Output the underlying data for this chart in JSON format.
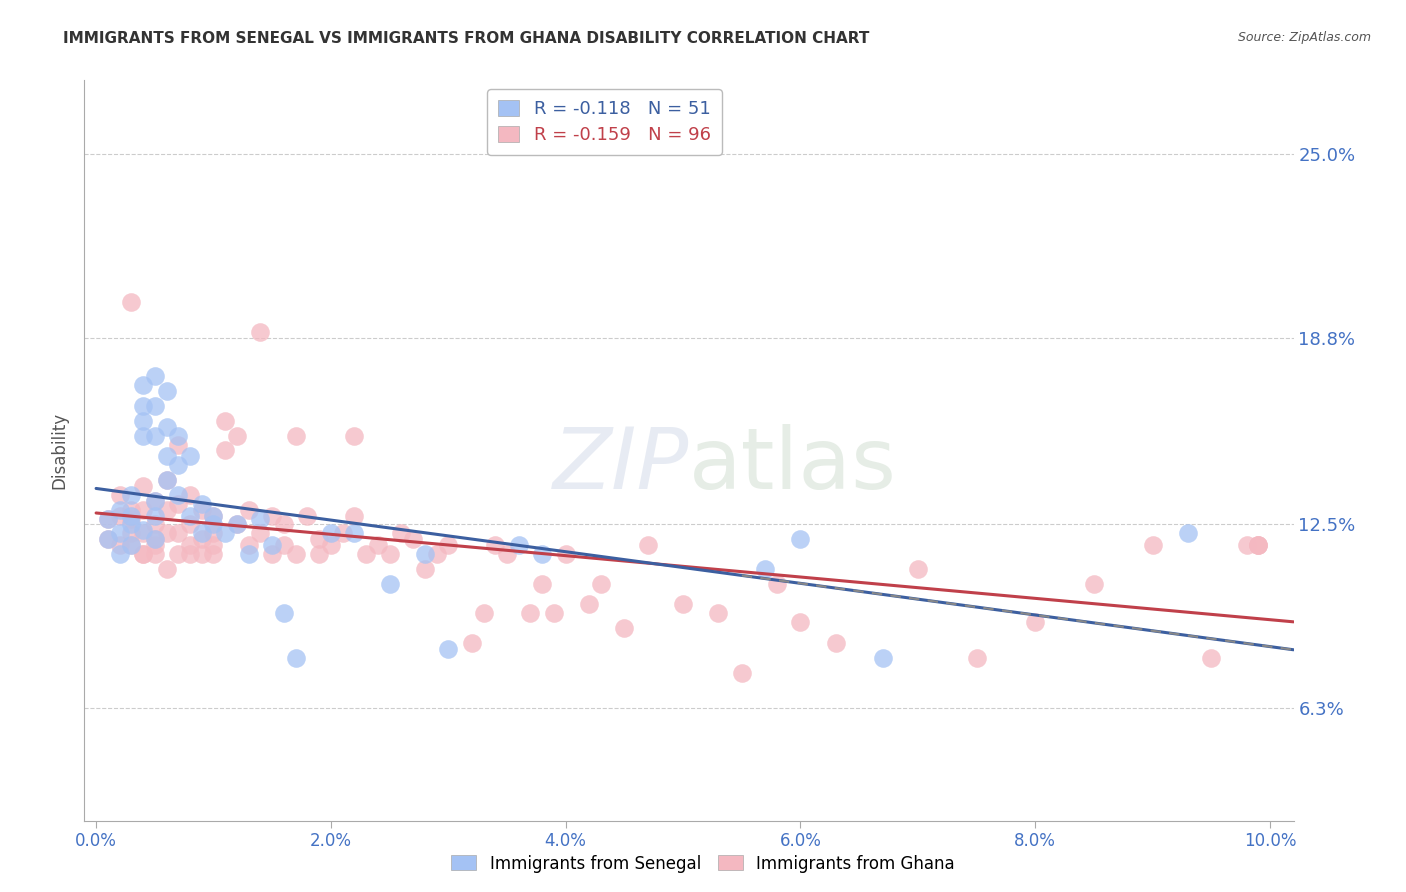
{
  "title": "IMMIGRANTS FROM SENEGAL VS IMMIGRANTS FROM GHANA DISABILITY CORRELATION CHART",
  "source": "Source: ZipAtlas.com",
  "ylabel": "Disability",
  "xlabel_vals": [
    0.0,
    0.02,
    0.04,
    0.06,
    0.08,
    0.1
  ],
  "ylabel_ticks": [
    "6.3%",
    "12.5%",
    "18.8%",
    "25.0%"
  ],
  "ylabel_vals": [
    0.063,
    0.125,
    0.188,
    0.25
  ],
  "xlim": [
    -0.001,
    0.102
  ],
  "ylim": [
    0.025,
    0.275
  ],
  "senegal_color": "#a4c2f4",
  "ghana_color": "#f4b8c1",
  "senegal_line_color": "#3c5fa0",
  "ghana_line_color": "#c0404a",
  "grid_color": "#cccccc",
  "background_color": "#ffffff",
  "title_fontsize": 11,
  "axis_label_color": "#4472c4",
  "senegal_x": [
    0.001,
    0.001,
    0.002,
    0.002,
    0.002,
    0.003,
    0.003,
    0.003,
    0.003,
    0.004,
    0.004,
    0.004,
    0.004,
    0.004,
    0.005,
    0.005,
    0.005,
    0.005,
    0.005,
    0.005,
    0.006,
    0.006,
    0.006,
    0.006,
    0.007,
    0.007,
    0.007,
    0.008,
    0.008,
    0.009,
    0.009,
    0.01,
    0.01,
    0.011,
    0.012,
    0.013,
    0.014,
    0.015,
    0.016,
    0.017,
    0.02,
    0.022,
    0.025,
    0.028,
    0.03,
    0.036,
    0.038,
    0.057,
    0.06,
    0.067,
    0.093
  ],
  "senegal_y": [
    0.12,
    0.127,
    0.13,
    0.122,
    0.115,
    0.125,
    0.118,
    0.128,
    0.135,
    0.155,
    0.16,
    0.165,
    0.172,
    0.123,
    0.128,
    0.133,
    0.155,
    0.165,
    0.175,
    0.12,
    0.14,
    0.148,
    0.158,
    0.17,
    0.135,
    0.145,
    0.155,
    0.128,
    0.148,
    0.122,
    0.132,
    0.125,
    0.128,
    0.122,
    0.125,
    0.115,
    0.127,
    0.118,
    0.095,
    0.08,
    0.122,
    0.122,
    0.105,
    0.115,
    0.083,
    0.118,
    0.115,
    0.11,
    0.12,
    0.08,
    0.122
  ],
  "ghana_x": [
    0.001,
    0.001,
    0.002,
    0.002,
    0.002,
    0.003,
    0.003,
    0.003,
    0.003,
    0.003,
    0.004,
    0.004,
    0.004,
    0.004,
    0.004,
    0.005,
    0.005,
    0.005,
    0.005,
    0.005,
    0.006,
    0.006,
    0.006,
    0.006,
    0.007,
    0.007,
    0.007,
    0.007,
    0.008,
    0.008,
    0.008,
    0.008,
    0.009,
    0.009,
    0.009,
    0.01,
    0.01,
    0.01,
    0.01,
    0.011,
    0.011,
    0.012,
    0.012,
    0.013,
    0.013,
    0.014,
    0.014,
    0.015,
    0.015,
    0.016,
    0.016,
    0.017,
    0.017,
    0.018,
    0.019,
    0.019,
    0.02,
    0.021,
    0.022,
    0.022,
    0.023,
    0.024,
    0.025,
    0.026,
    0.027,
    0.028,
    0.029,
    0.03,
    0.032,
    0.033,
    0.034,
    0.035,
    0.037,
    0.038,
    0.039,
    0.04,
    0.042,
    0.043,
    0.045,
    0.047,
    0.05,
    0.053,
    0.055,
    0.058,
    0.06,
    0.063,
    0.07,
    0.075,
    0.08,
    0.085,
    0.09,
    0.095,
    0.098,
    0.099,
    0.099,
    0.099
  ],
  "ghana_y": [
    0.12,
    0.127,
    0.118,
    0.128,
    0.135,
    0.122,
    0.13,
    0.118,
    0.127,
    0.2,
    0.115,
    0.122,
    0.13,
    0.138,
    0.115,
    0.118,
    0.125,
    0.133,
    0.12,
    0.115,
    0.11,
    0.122,
    0.13,
    0.14,
    0.115,
    0.122,
    0.132,
    0.152,
    0.118,
    0.125,
    0.135,
    0.115,
    0.12,
    0.13,
    0.115,
    0.122,
    0.118,
    0.128,
    0.115,
    0.15,
    0.16,
    0.155,
    0.125,
    0.118,
    0.13,
    0.122,
    0.19,
    0.115,
    0.128,
    0.118,
    0.125,
    0.115,
    0.155,
    0.128,
    0.12,
    0.115,
    0.118,
    0.122,
    0.128,
    0.155,
    0.115,
    0.118,
    0.115,
    0.122,
    0.12,
    0.11,
    0.115,
    0.118,
    0.085,
    0.095,
    0.118,
    0.115,
    0.095,
    0.105,
    0.095,
    0.115,
    0.098,
    0.105,
    0.09,
    0.118,
    0.098,
    0.095,
    0.075,
    0.105,
    0.092,
    0.085,
    0.11,
    0.08,
    0.092,
    0.105,
    0.118,
    0.08,
    0.118,
    0.118,
    0.118,
    0.118
  ]
}
